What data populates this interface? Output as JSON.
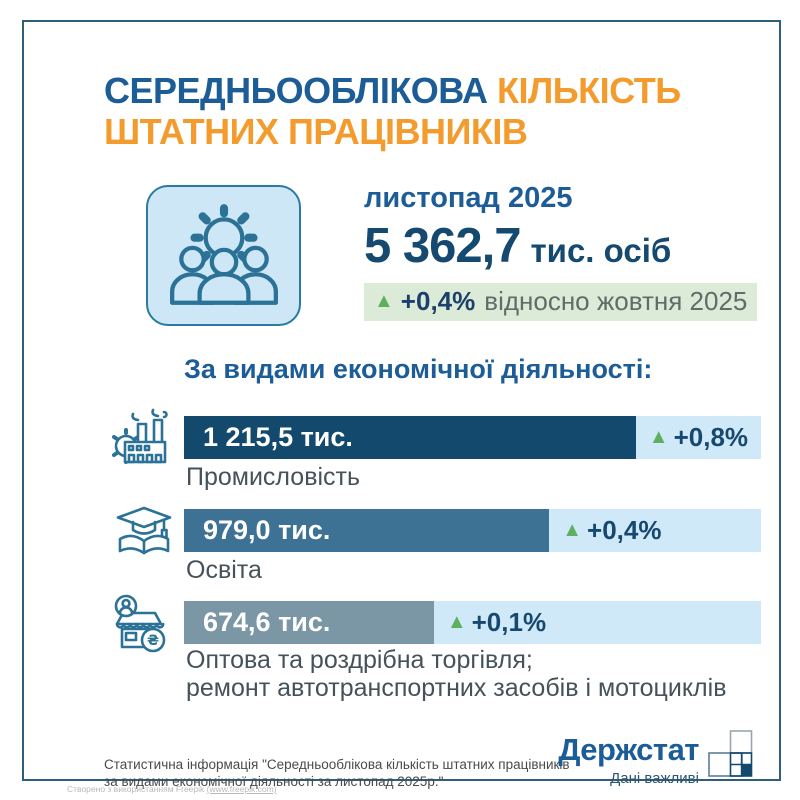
{
  "title": {
    "line1_part1": "СЕРЕДНЬООБЛІКОВА ",
    "line1_part2": "КІЛЬКІСТЬ",
    "line2": "ШТАТНИХ ПРАЦІВНИКІВ",
    "color_primary": "#1c5d98",
    "color_accent": "#f49b2e"
  },
  "summary": {
    "period": "листопад 2025",
    "value": "5 362,7",
    "unit": "тис. осіб",
    "delta_arrow": "▲",
    "delta": "+0,4%",
    "delta_note": "відносно жовтня 2025",
    "badge_bg": "#dcead8",
    "arrow_color": "#5db05d"
  },
  "section": {
    "heading": "За видами економічної діяльності:"
  },
  "chart_data": {
    "type": "bar",
    "orientation": "horizontal",
    "title": "Середньооблікова кількість штатних працівників за видами економічної діяльності, листопад 2025",
    "unit": "тис. осіб",
    "categories": [
      "Промисловість",
      "Освіта",
      "Оптова та роздрібна торгівля; ремонт автотранспортних засобів і мотоциклів"
    ],
    "values": [
      1215.5,
      979.0,
      674.6
    ],
    "value_labels": [
      "1 215,5 тис.",
      "979,0 тис.",
      "674,6 тис."
    ],
    "change_vs_prev_month": [
      "+0,8%",
      "+0,4%",
      "+0,1%"
    ],
    "total": 5362.7,
    "total_label": "5 362,7 тис. осіб",
    "total_change": "+0,4%",
    "bar_colors": [
      "#14496e",
      "#3e7294",
      "#7b96a4"
    ],
    "track_color": "#cfe9f8",
    "xlim": [
      0,
      1550
    ],
    "grid": false,
    "legend": false
  },
  "bars": [
    {
      "icon": "factory-icon",
      "value_label": "1 215,5 тис.",
      "delta_arrow": "▲",
      "delta": "+0,8%",
      "fill_pct": 78.3,
      "color": "#14496e",
      "label_lines": [
        "Промисловість"
      ]
    },
    {
      "icon": "education-icon",
      "value_label": "979,0 тис.",
      "delta_arrow": "▲",
      "delta": "+0,4%",
      "fill_pct": 63.3,
      "color": "#3e7294",
      "label_lines": [
        "Освіта"
      ]
    },
    {
      "icon": "retail-shop-icon",
      "value_label": "674,6 тис.",
      "delta_arrow": "▲",
      "delta": "+0,1%",
      "fill_pct": 43.3,
      "color": "#7b96a4",
      "label_lines": [
        "Оптова та роздрібна торгівля;",
        "ремонт автотранспортних засобів і мотоциклів"
      ]
    }
  ],
  "footer": {
    "source_line1": "Статистична інформація \"Середньооблікова кількість штатних працівників",
    "source_line2": "за видами економічної діяльності за листопад 2025р.\"",
    "logo_text": "Держстат",
    "logo_tagline": "Дані важливі"
  },
  "credit": {
    "text": "Створено з використанням Freepik ",
    "link": "(www.freepik.com)"
  }
}
